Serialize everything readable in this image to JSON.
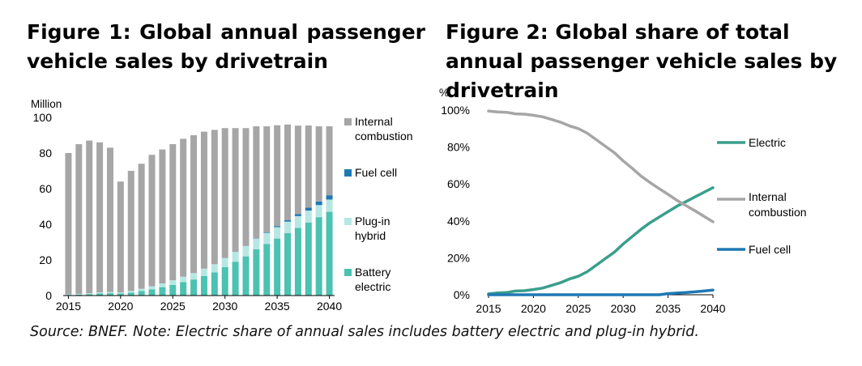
{
  "figure1": {
    "title": "Figure 1: Global annual passenger vehicle sales by drivetrain",
    "unit": "Million",
    "chart_data": {
      "type": "bar",
      "stacked": true,
      "x": [
        2015,
        2016,
        2017,
        2018,
        2019,
        2020,
        2021,
        2022,
        2023,
        2024,
        2025,
        2026,
        2027,
        2028,
        2029,
        2030,
        2031,
        2032,
        2033,
        2034,
        2035,
        2036,
        2037,
        2038,
        2039,
        2040
      ],
      "x_ticks": [
        "2015",
        "2020",
        "2025",
        "2030",
        "2035",
        "2040"
      ],
      "y_ticks": [
        "0",
        "20",
        "40",
        "60",
        "80",
        "100"
      ],
      "ylim": [
        0,
        100
      ],
      "grid": false,
      "legend_position": "right",
      "series": [
        {
          "name": "Battery electric",
          "color": "#4BC2B2",
          "values": [
            0.4,
            0.5,
            0.8,
            1.2,
            1.3,
            1.2,
            1.7,
            2.5,
            3.5,
            4.7,
            6,
            7.5,
            9,
            11,
            13,
            16,
            19,
            22,
            26,
            29,
            32,
            35,
            38,
            41,
            44,
            47
          ]
        },
        {
          "name": "Plug-in hybrid",
          "color": "#B6E7E3",
          "values": [
            0.3,
            0.4,
            0.5,
            0.6,
            0.7,
            0.6,
            0.9,
            1.3,
            1.7,
            2.1,
            2.6,
            3.1,
            3.6,
            4.1,
            4.6,
            5.1,
            5.5,
            5.8,
            6.0,
            6.2,
            6.4,
            6.5,
            6.6,
            6.7,
            6.8,
            6.9
          ]
        },
        {
          "name": "Fuel cell",
          "color": "#1F78B4",
          "values": [
            0,
            0,
            0,
            0,
            0,
            0,
            0,
            0,
            0,
            0,
            0,
            0,
            0,
            0,
            0,
            0,
            0,
            0,
            0.2,
            0.4,
            0.6,
            0.9,
            1.2,
            1.6,
            2.0,
            2.4
          ]
        },
        {
          "name": "Internal combustion",
          "color": "#A6A6A6",
          "values": [
            79.3,
            84.1,
            85.7,
            84.2,
            81.0,
            62.2,
            67.4,
            70.2,
            73.8,
            75.2,
            76.4,
            77.4,
            77.4,
            76.9,
            75.4,
            72.9,
            69.5,
            66.2,
            62.8,
            59.4,
            56.6,
            53.6,
            49.6,
            46.2,
            42.2,
            38.7
          ]
        }
      ]
    },
    "legend": {
      "internal": [
        "Internal",
        "combustion"
      ],
      "fuel": [
        "Fuel cell"
      ],
      "plugin": [
        "Plug-in",
        "hybrid"
      ],
      "battery": [
        "Battery",
        "electric"
      ]
    }
  },
  "figure2": {
    "title": "Figure 2: Global share of total annual passenger vehicle sales by drivetrain",
    "unit": "%",
    "chart_data": {
      "type": "line",
      "x": [
        2015,
        2016,
        2017,
        2018,
        2019,
        2020,
        2021,
        2022,
        2023,
        2024,
        2025,
        2026,
        2027,
        2028,
        2029,
        2030,
        2031,
        2032,
        2033,
        2034,
        2035,
        2036,
        2037,
        2038,
        2039,
        2040
      ],
      "x_ticks": [
        "2015",
        "2020",
        "2025",
        "2030",
        "2035",
        "2040"
      ],
      "y_ticks": [
        "0%",
        "20%",
        "40%",
        "60%",
        "80%",
        "100%"
      ],
      "ylim": [
        0,
        100
      ],
      "grid": false,
      "legend_position": "right",
      "series": [
        {
          "name": "Electric",
          "color": "#3A9E8C",
          "values": [
            0.5,
            1,
            1.2,
            2,
            2.2,
            2.8,
            3.6,
            5,
            6.5,
            8.5,
            10,
            12.5,
            16,
            19.5,
            23,
            27.5,
            31.5,
            35.5,
            39,
            42,
            45,
            48,
            50.5,
            53,
            55.5,
            58
          ]
        },
        {
          "name": "Internal combustion",
          "color": "#A6A6A6",
          "values": [
            99.5,
            99,
            98.8,
            98,
            97.8,
            97.2,
            96.4,
            95,
            93.5,
            91.5,
            90,
            87.5,
            84,
            80.5,
            77,
            72.5,
            68.5,
            64.2,
            60.8,
            57.5,
            54.4,
            51.1,
            48.3,
            45.5,
            42.5,
            39.5
          ]
        },
        {
          "name": "Fuel cell",
          "color": "#1F78B4",
          "values": [
            0,
            0,
            0,
            0,
            0,
            0,
            0,
            0,
            0,
            0,
            0,
            0,
            0,
            0,
            0,
            0,
            0,
            0,
            0,
            0,
            0.6,
            0.9,
            1.2,
            1.6,
            2.0,
            2.5
          ]
        }
      ]
    },
    "legend": {
      "electric": [
        "Electric"
      ],
      "internal": [
        "Internal",
        "combustion"
      ],
      "fuel": [
        "Fuel cell"
      ]
    }
  },
  "source_note": "Source: BNEF. Note: Electric share of annual sales includes battery electric and plug-in hybrid."
}
